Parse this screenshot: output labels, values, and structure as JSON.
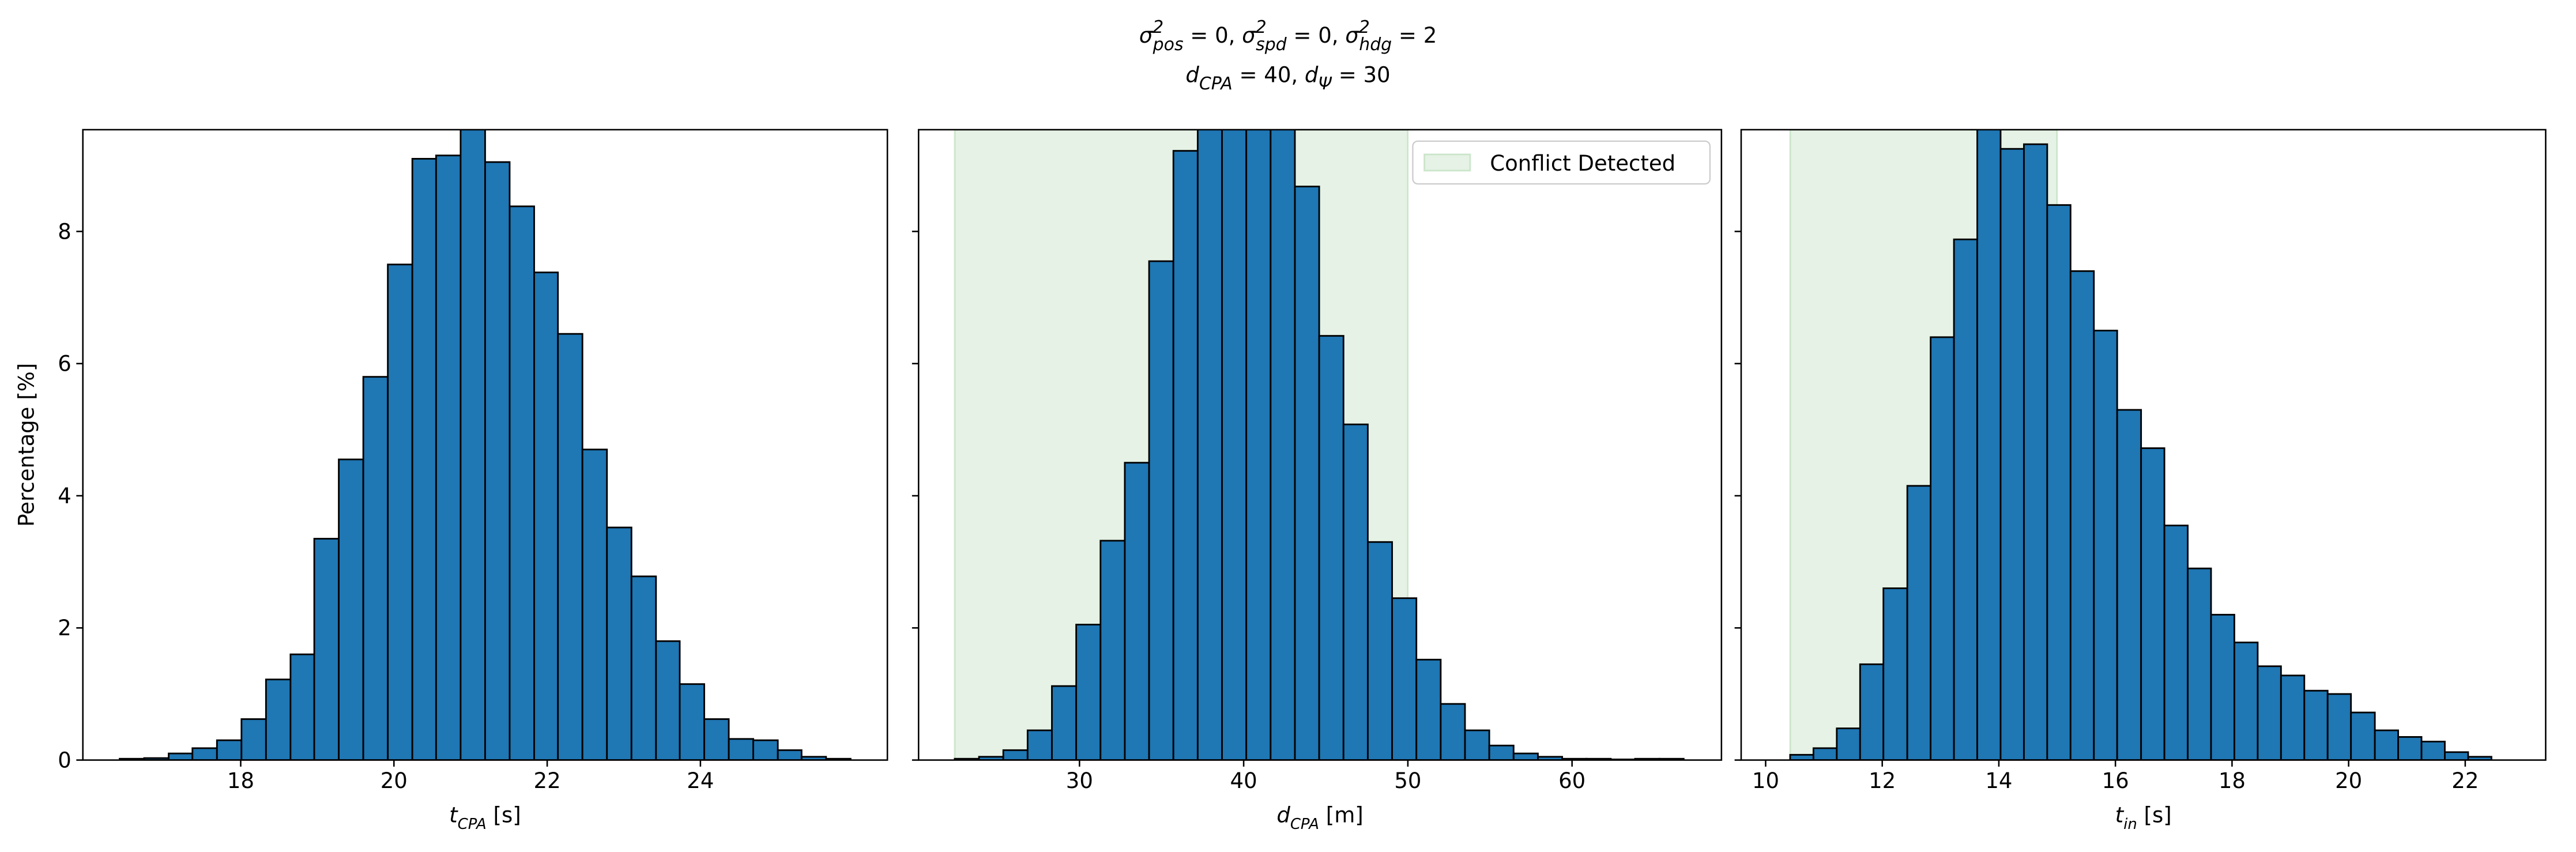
{
  "title": [
    [
      {
        "text": "σ",
        "style": "i"
      },
      {
        "text": "2",
        "style": "sup"
      },
      {
        "text": "pos",
        "style": "sub"
      },
      {
        "text": " = 0, ",
        "style": "n"
      },
      {
        "text": "σ",
        "style": "i"
      },
      {
        "text": "2",
        "style": "sup"
      },
      {
        "text": "spd",
        "style": "sub"
      },
      {
        "text": " = 0, ",
        "style": "n"
      },
      {
        "text": "σ",
        "style": "i"
      },
      {
        "text": "2",
        "style": "sup"
      },
      {
        "text": "hdg",
        "style": "sub"
      },
      {
        "text": " = 2",
        "style": "n"
      }
    ],
    [
      {
        "text": "d",
        "style": "i"
      },
      {
        "text": "CPA",
        "style": "sub"
      },
      {
        "text": " = 40, ",
        "style": "n"
      },
      {
        "text": "d",
        "style": "i"
      },
      {
        "text": "Ψ",
        "style": "sub"
      },
      {
        "text": " = 30",
        "style": "n"
      }
    ]
  ],
  "chart_data": [
    {
      "type": "histogram",
      "color": "#1f77b4",
      "edgecolor": "#000000",
      "xlabel": [
        {
          "text": "t",
          "style": "i"
        },
        {
          "text": "CPA",
          "style": "sub"
        },
        {
          "text": " [s]",
          "style": "n"
        }
      ],
      "ylabel": "Percentage [%]",
      "bins": [
        16.42,
        16.74,
        17.06,
        17.37,
        17.69,
        18.01,
        18.33,
        18.65,
        18.96,
        19.28,
        19.6,
        19.92,
        20.24,
        20.55,
        20.87,
        21.19,
        21.51,
        21.83,
        22.14,
        22.46,
        22.78,
        23.1,
        23.42,
        23.73,
        24.05,
        24.37,
        24.69,
        25.01,
        25.32,
        25.64,
        25.96
      ],
      "values": [
        0.02,
        0.03,
        0.1,
        0.18,
        0.3,
        0.62,
        1.22,
        1.6,
        3.35,
        4.55,
        5.8,
        7.5,
        9.1,
        9.15,
        9.7,
        9.05,
        8.38,
        7.38,
        6.45,
        4.7,
        3.52,
        2.78,
        1.8,
        1.15,
        0.62,
        0.32,
        0.3,
        0.15,
        0.05,
        0.02
      ],
      "xlim": [
        15.94,
        26.44
      ],
      "xticks": [
        18,
        20,
        22,
        24
      ],
      "ylim": [
        0,
        9.54
      ],
      "yticks": [
        0,
        2,
        4,
        6,
        8
      ],
      "ytick_labels": true
    },
    {
      "type": "histogram",
      "color": "#1f77b4",
      "edgecolor": "#000000",
      "xlabel": [
        {
          "text": "d",
          "style": "i"
        },
        {
          "text": "CPA",
          "style": "sub"
        },
        {
          "text": " [m]",
          "style": "n"
        }
      ],
      "bins": [
        22.4,
        23.88,
        25.36,
        26.84,
        28.32,
        29.8,
        31.28,
        32.76,
        34.24,
        35.72,
        37.2,
        38.68,
        40.16,
        41.64,
        43.12,
        44.6,
        46.08,
        47.56,
        49.04,
        50.52,
        52.0,
        53.48,
        54.96,
        56.44,
        57.92,
        59.4,
        60.88,
        62.36,
        63.84,
        65.32,
        66.8
      ],
      "values": [
        0.02,
        0.05,
        0.15,
        0.45,
        1.12,
        2.05,
        3.32,
        4.5,
        7.55,
        9.22,
        10.1,
        10.3,
        10.2,
        9.9,
        8.68,
        6.42,
        5.08,
        3.3,
        2.45,
        1.52,
        0.85,
        0.45,
        0.22,
        0.1,
        0.05,
        0.02,
        0.02,
        0.01,
        0.02,
        0.02
      ],
      "xlim": [
        20.2,
        69.1
      ],
      "xticks": [
        30,
        40,
        50,
        60
      ],
      "ylim": [
        0,
        9.54
      ],
      "yticks": [
        0,
        2,
        4,
        6,
        8
      ],
      "ytick_labels": false,
      "shade": {
        "range": [
          22.4,
          50
        ],
        "color": "green",
        "alpha": 0.1,
        "label": "Conflict Detected"
      },
      "legend": "upper right"
    },
    {
      "type": "histogram",
      "color": "#1f77b4",
      "edgecolor": "#000000",
      "xlabel": [
        {
          "text": "t",
          "style": "i"
        },
        {
          "text": "in",
          "style": "sub"
        },
        {
          "text": " [s]",
          "style": "n"
        }
      ],
      "bins": [
        10.42,
        10.82,
        11.22,
        11.62,
        12.02,
        12.43,
        12.83,
        13.23,
        13.63,
        14.03,
        14.43,
        14.83,
        15.23,
        15.63,
        16.03,
        16.44,
        16.84,
        17.24,
        17.64,
        18.04,
        18.44,
        18.84,
        19.24,
        19.64,
        20.04,
        20.45,
        20.85,
        21.25,
        21.65,
        22.05,
        22.45
      ],
      "values": [
        0.08,
        0.18,
        0.48,
        1.45,
        2.6,
        4.15,
        6.4,
        7.88,
        9.8,
        9.25,
        9.32,
        8.4,
        7.4,
        6.5,
        5.3,
        4.72,
        3.55,
        2.9,
        2.2,
        1.78,
        1.42,
        1.28,
        1.05,
        1.0,
        0.72,
        0.45,
        0.35,
        0.28,
        0.12,
        0.05
      ],
      "xlim": [
        9.58,
        23.38
      ],
      "xticks": [
        10,
        12,
        14,
        16,
        18,
        20,
        22
      ],
      "ylim": [
        0,
        9.54
      ],
      "yticks": [
        0,
        2,
        4,
        6,
        8
      ],
      "ytick_labels": false,
      "shade": {
        "range": [
          10.42,
          15.0
        ],
        "color": "green",
        "alpha": 0.1
      }
    }
  ]
}
